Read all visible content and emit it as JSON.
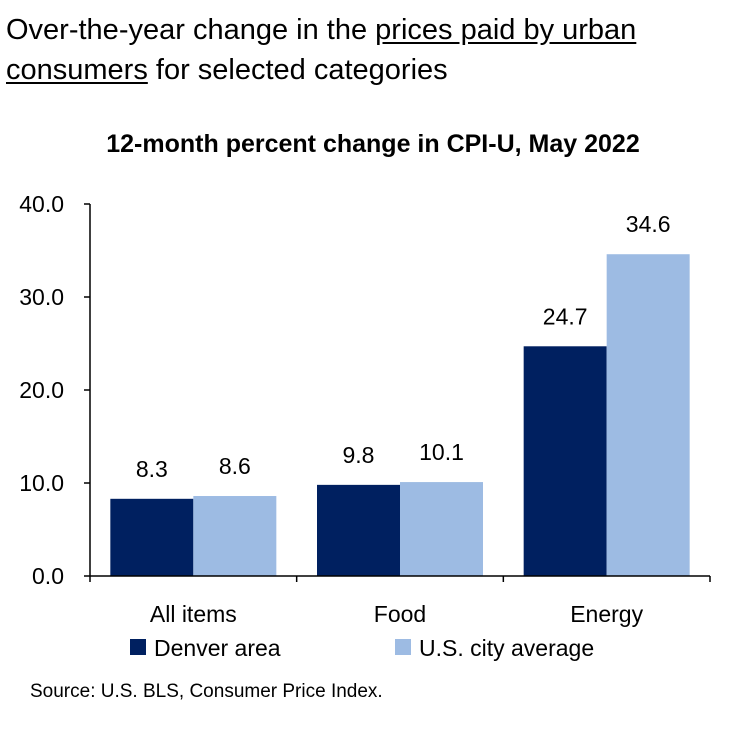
{
  "headline": {
    "part1": "Over-the-year change in the ",
    "link": "prices paid by urban consumers",
    "part2": " for selected categories"
  },
  "chart_data": {
    "type": "bar",
    "title": "12-month percent change in CPI-U, May 2022",
    "categories": [
      "All items",
      "Food",
      "Energy"
    ],
    "series": [
      {
        "name": "Denver area",
        "values": [
          8.3,
          9.8,
          24.7
        ],
        "color": "#002060"
      },
      {
        "name": "U.S. city average",
        "values": [
          8.6,
          10.1,
          34.6
        ],
        "color": "#9DBBE3"
      }
    ],
    "ylim": [
      0,
      40
    ],
    "yticks": [
      "0.0",
      "10.0",
      "20.0",
      "30.0",
      "40.0"
    ],
    "grid": false,
    "legend": "bottom",
    "data_labels": true,
    "source": "Source: U.S. BLS, Consumer Price Index."
  }
}
